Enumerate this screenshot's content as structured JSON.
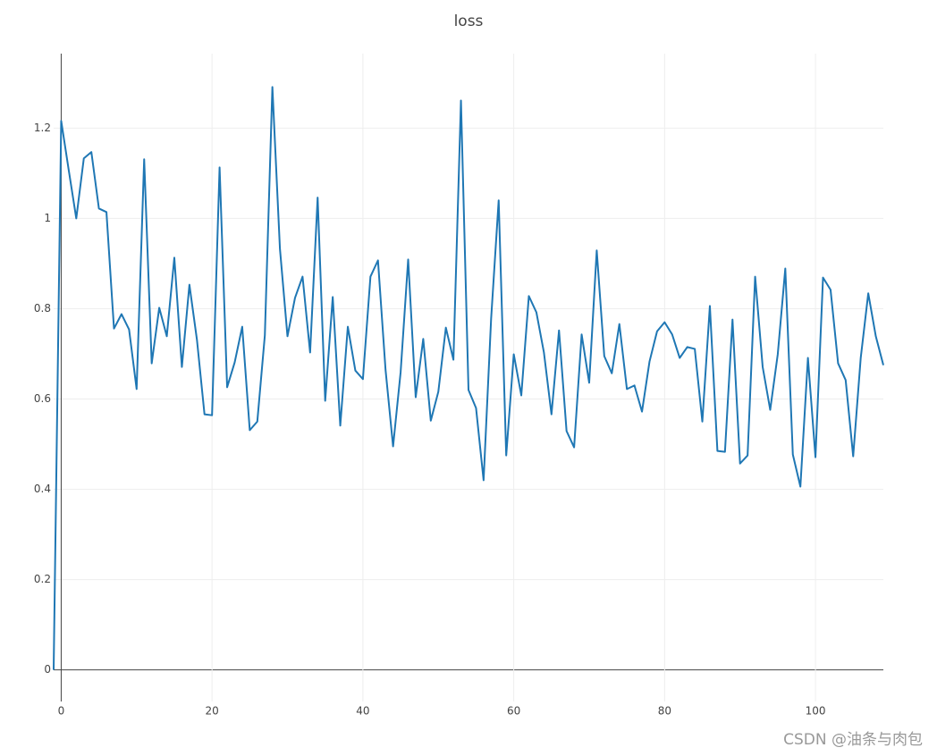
{
  "chart_data": {
    "type": "line",
    "title": "loss",
    "watermark": "CSDN @油条与肉包",
    "x": [
      -1,
      0,
      1,
      2,
      3,
      4,
      5,
      6,
      7,
      8,
      9,
      10,
      11,
      12,
      13,
      14,
      15,
      16,
      17,
      18,
      19,
      20,
      21,
      22,
      23,
      24,
      25,
      26,
      27,
      28,
      29,
      30,
      31,
      32,
      33,
      34,
      35,
      36,
      37,
      38,
      39,
      40,
      41,
      42,
      43,
      44,
      45,
      46,
      47,
      48,
      49,
      50,
      51,
      52,
      53,
      54,
      55,
      56,
      57,
      58,
      59,
      60,
      61,
      62,
      63,
      64,
      65,
      66,
      67,
      68,
      69,
      70,
      71,
      72,
      73,
      74,
      75,
      76,
      77,
      78,
      79,
      80,
      81,
      82,
      83,
      84,
      85,
      86,
      87,
      88,
      89,
      90,
      91,
      92,
      93,
      94,
      95,
      96,
      97,
      98,
      99,
      100,
      101,
      102,
      103,
      104,
      105,
      106,
      107,
      108,
      109
    ],
    "values": [
      0,
      1.216,
      1.107,
      1.0,
      1.133,
      1.147,
      1.022,
      1.014,
      0.756,
      0.788,
      0.754,
      0.622,
      1.131,
      0.679,
      0.802,
      0.739,
      0.913,
      0.671,
      0.853,
      0.731,
      0.566,
      0.564,
      1.113,
      0.626,
      0.681,
      0.76,
      0.531,
      0.55,
      0.741,
      1.291,
      0.933,
      0.739,
      0.824,
      0.871,
      0.703,
      1.046,
      0.596,
      0.826,
      0.541,
      0.76,
      0.663,
      0.644,
      0.871,
      0.907,
      0.665,
      0.495,
      0.659,
      0.909,
      0.604,
      0.733,
      0.552,
      0.616,
      0.758,
      0.687,
      1.261,
      0.62,
      0.58,
      0.42,
      0.778,
      1.04,
      0.475,
      0.699,
      0.608,
      0.828,
      0.792,
      0.703,
      0.566,
      0.752,
      0.529,
      0.493,
      0.743,
      0.636,
      0.929,
      0.695,
      0.657,
      0.766,
      0.622,
      0.63,
      0.572,
      0.683,
      0.75,
      0.77,
      0.743,
      0.691,
      0.715,
      0.711,
      0.55,
      0.806,
      0.485,
      0.483,
      0.776,
      0.457,
      0.475,
      0.871,
      0.671,
      0.576,
      0.699,
      0.889,
      0.477,
      0.406,
      0.691,
      0.471,
      0.869,
      0.842,
      0.679,
      0.642,
      0.473,
      0.691,
      0.834,
      0.739,
      0.675
    ],
    "color": "#1f77b4",
    "xlim": [
      -1,
      109
    ],
    "xticks": [
      0,
      20,
      40,
      60,
      80,
      100
    ],
    "ylim": [
      -0.07,
      1.365
    ],
    "yticks": [
      0,
      0.2,
      0.4,
      0.6,
      0.8,
      1,
      1.2
    ],
    "grid": true
  }
}
